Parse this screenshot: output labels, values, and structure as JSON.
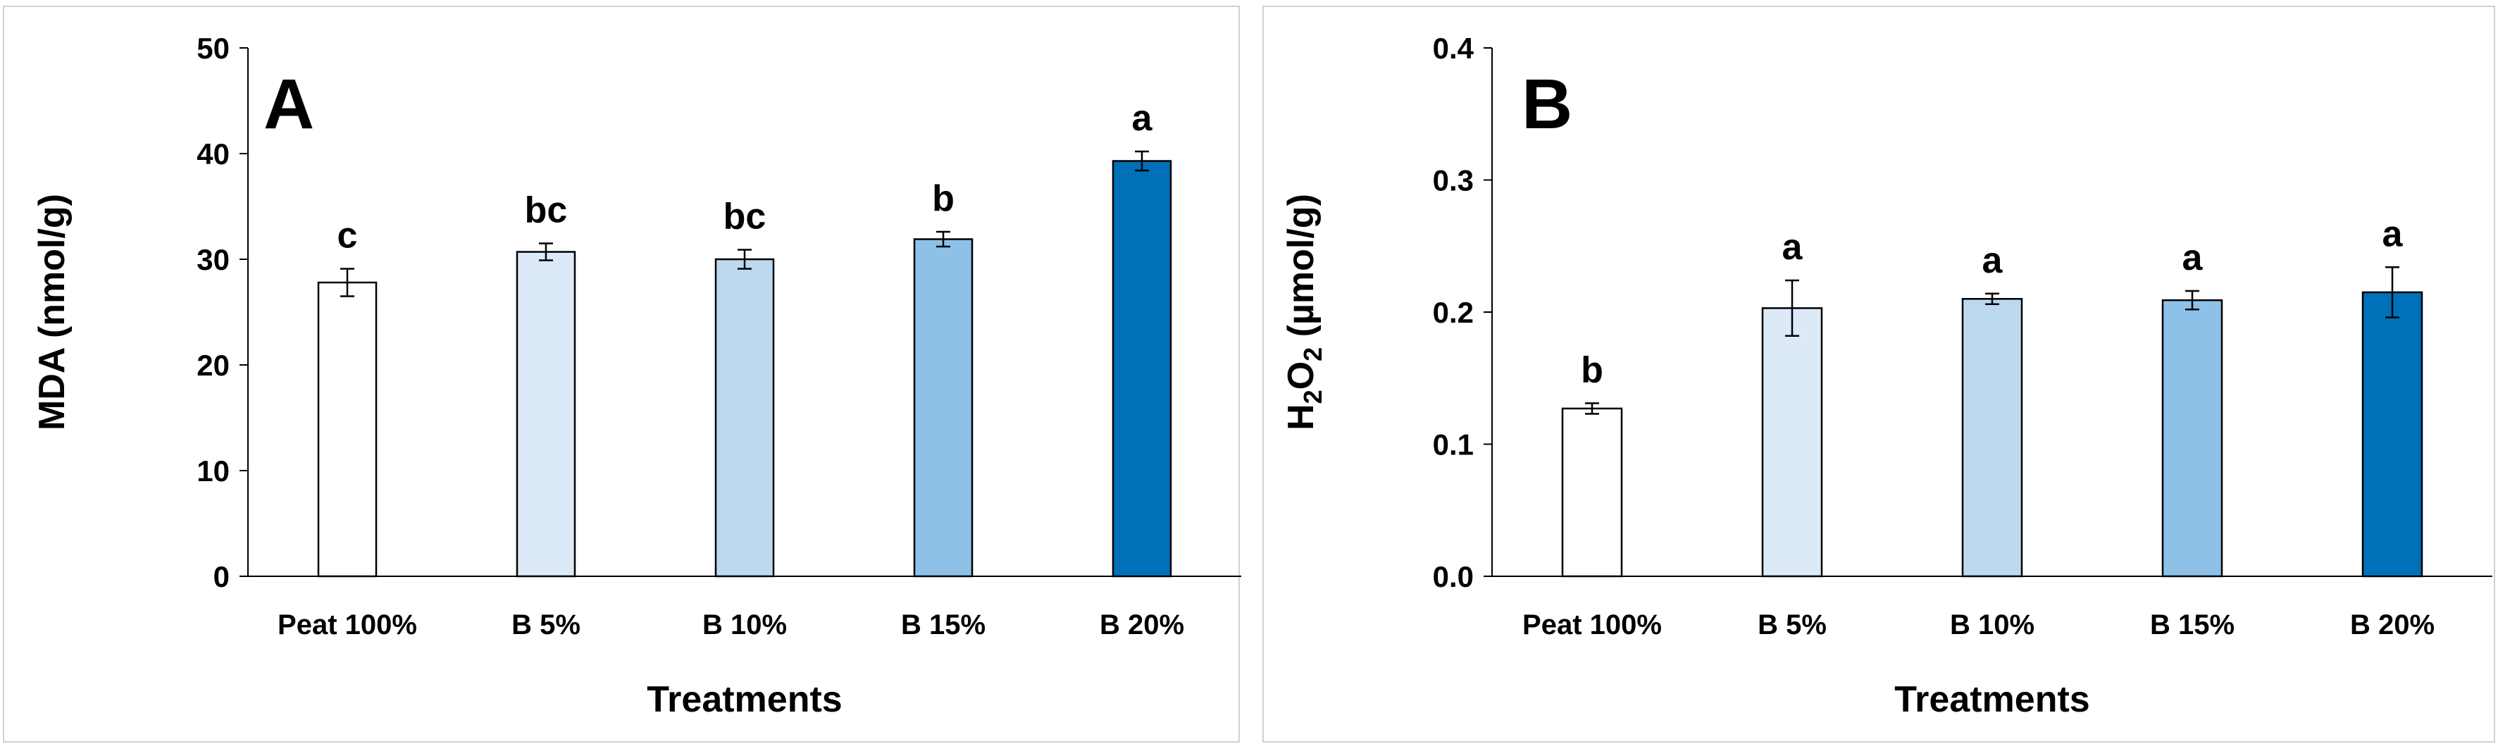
{
  "chart_data": [
    {
      "type": "bar",
      "panel_label": "A",
      "title": "",
      "xlabel": "Treatments",
      "ylabel": "MDA (nmol/g)",
      "ylim": [
        0,
        50
      ],
      "yticks": [
        0,
        10,
        20,
        30,
        40,
        50
      ],
      "ytick_labels": [
        "0",
        "10",
        "20",
        "30",
        "40",
        "50"
      ],
      "grid": false,
      "categories": [
        "Peat 100%",
        "B 5%",
        "B 10%",
        "B 15%",
        "B 20%"
      ],
      "values": [
        27.8,
        30.7,
        30.0,
        31.9,
        39.3
      ],
      "errors": [
        1.3,
        0.8,
        0.9,
        0.7,
        0.9
      ],
      "significance": [
        "c",
        "bc",
        "bc",
        "b",
        "a"
      ],
      "colors": [
        "#ffffff",
        "#dce9f6",
        "#bcd9f0",
        "#8ec1e8",
        "#0070b8"
      ]
    },
    {
      "type": "bar",
      "panel_label": "B",
      "title": "",
      "xlabel": "Treatments",
      "ylabel": "H2O2 (µmol/g)",
      "ylabel_parts": {
        "h": "H",
        "sub1": "2",
        "o": "O",
        "sub2": "2",
        "unit": " (µmol/g)"
      },
      "ylim": [
        0,
        0.4
      ],
      "yticks": [
        0,
        0.1,
        0.2,
        0.3,
        0.4
      ],
      "ytick_labels": [
        "0.0",
        "0.1",
        "0.2",
        "0.3",
        "0.4"
      ],
      "grid": false,
      "categories": [
        "Peat 100%",
        "B 5%",
        "B 10%",
        "B 15%",
        "B 20%"
      ],
      "values": [
        0.127,
        0.203,
        0.21,
        0.209,
        0.215
      ],
      "errors": [
        0.004,
        0.021,
        0.004,
        0.007,
        0.019
      ],
      "significance": [
        "b",
        "a",
        "a",
        "a",
        "a"
      ],
      "colors": [
        "#ffffff",
        "#dce9f6",
        "#bcd9f0",
        "#8ec1e8",
        "#0070b8"
      ]
    }
  ]
}
